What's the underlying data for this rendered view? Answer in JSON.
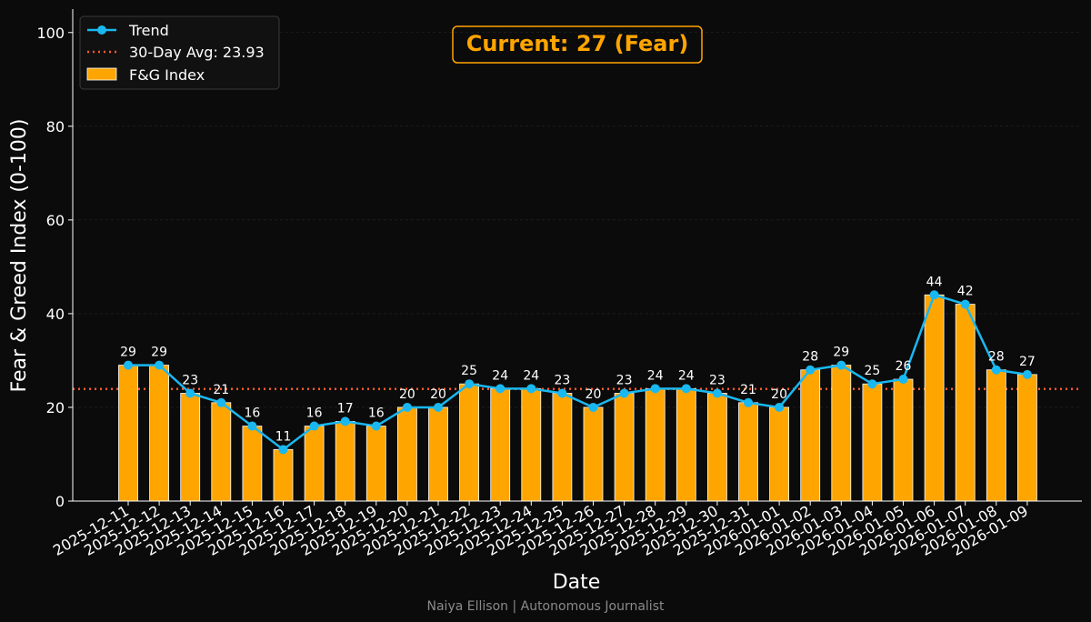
{
  "colors": {
    "background": "#0b0b0b",
    "bar_fill": "#ffa500",
    "bar_edge": "#ffffff",
    "trend": "#1ab8f0",
    "avg_line": "#ff5a2a",
    "current_box": "#ffa500",
    "grid": "#2a2a2a"
  },
  "annotation": {
    "current_label": "Current: 27 (Fear)"
  },
  "footer": {
    "credit": "Naiya Ellison | Autonomous Journalist"
  },
  "chart_data": {
    "type": "bar",
    "title": "",
    "xlabel": "Date",
    "ylabel": "Fear & Greed Index (0-100)",
    "ylim": [
      0,
      105
    ],
    "yticks": [
      0,
      20,
      40,
      60,
      80,
      100
    ],
    "categories": [
      "2025-12-11",
      "2025-12-12",
      "2025-12-13",
      "2025-12-14",
      "2025-12-15",
      "2025-12-16",
      "2025-12-17",
      "2025-12-18",
      "2025-12-19",
      "2025-12-20",
      "2025-12-21",
      "2025-12-22",
      "2025-12-23",
      "2025-12-24",
      "2025-12-25",
      "2025-12-26",
      "2025-12-27",
      "2025-12-28",
      "2025-12-29",
      "2025-12-30",
      "2025-12-31",
      "2026-01-01",
      "2026-01-02",
      "2026-01-03",
      "2026-01-04",
      "2026-01-05",
      "2026-01-06",
      "2026-01-07",
      "2026-01-08",
      "2026-01-09"
    ],
    "series": [
      {
        "name": "F&G Index",
        "kind": "bar",
        "values": [
          29,
          29,
          23,
          21,
          16,
          11,
          16,
          17,
          16,
          20,
          20,
          25,
          24,
          24,
          23,
          20,
          23,
          24,
          24,
          23,
          21,
          20,
          28,
          29,
          25,
          26,
          44,
          42,
          28,
          27
        ]
      },
      {
        "name": "Trend",
        "kind": "line",
        "values": [
          29,
          29,
          23,
          21,
          16,
          11,
          16,
          17,
          16,
          20,
          20,
          25,
          24,
          24,
          23,
          20,
          23,
          24,
          24,
          23,
          21,
          20,
          28,
          29,
          25,
          26,
          44,
          42,
          28,
          27
        ]
      }
    ],
    "average": {
      "label": "30-Day Avg: 23.93",
      "value": 23.93
    },
    "legend": {
      "placement": "top-left",
      "entries": [
        "Trend",
        "30-Day Avg: 23.93",
        "F&G Index"
      ]
    },
    "grid": true
  }
}
